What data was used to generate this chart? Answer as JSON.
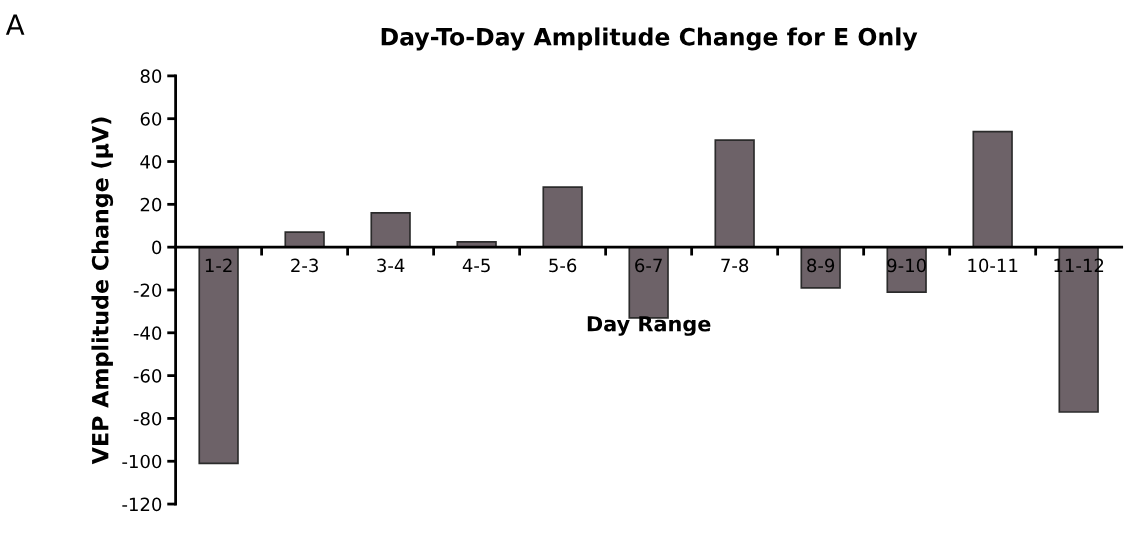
{
  "chart_data": {
    "type": "bar",
    "title": "Day-To-Day Amplitude Change for E Only",
    "xlabel": "Day Range",
    "ylabel": "VEP Amplitude Change (µV)",
    "annotations": [
      "A"
    ],
    "categories": [
      "1-2",
      "2-3",
      "3-4",
      "4-5",
      "5-6",
      "6-7",
      "7-8",
      "8-9",
      "9-10",
      "10-11",
      "11-12"
    ],
    "values": [
      -101,
      7,
      16,
      2.5,
      28,
      -33,
      50,
      -19,
      -21,
      54,
      -77
    ],
    "color": "#6d6268",
    "ylim": [
      -120,
      80
    ],
    "yticks": [
      -120,
      -100,
      -80,
      -60,
      -40,
      -20,
      0,
      20,
      40,
      60,
      80
    ],
    "grid": false,
    "legend": false
  }
}
